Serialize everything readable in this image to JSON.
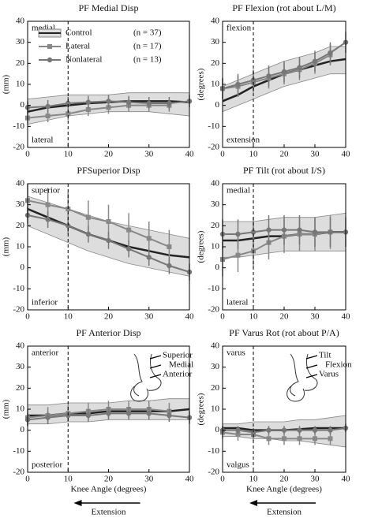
{
  "chart_data": [
    {
      "type": "line",
      "title": "PF Medial Disp",
      "ylabel": "(mm)",
      "annotations": [
        "medial",
        "lateral"
      ],
      "x": [
        0,
        5,
        10,
        15,
        20,
        25,
        30,
        35,
        40
      ],
      "xlim": [
        0,
        40
      ],
      "xticks": [
        0,
        10,
        20,
        30,
        40
      ],
      "ylim": [
        -20,
        40
      ],
      "yticks": [
        -20,
        -10,
        0,
        10,
        20,
        30,
        40
      ],
      "reference_x": 10,
      "legend": true,
      "legend_counts": [
        "(n = 37)",
        "(n = 17)",
        "(n = 13)"
      ],
      "series": [
        {
          "name": "Control",
          "color": "#222222",
          "band_color": "#dddddd",
          "values": [
            -3,
            -1,
            0,
            1,
            1.5,
            2,
            2,
            2,
            1.5
          ],
          "lower": [
            -9,
            -7,
            -5,
            -4,
            -3,
            -3,
            -3,
            -4,
            -5
          ],
          "upper": [
            3,
            4,
            5,
            5,
            5,
            6,
            6,
            6,
            6
          ]
        },
        {
          "name": "Lateral",
          "color": "#888888",
          "marker": "square",
          "values": [
            -6,
            -5,
            -4,
            -2,
            -1,
            0,
            0,
            0,
            null
          ],
          "errors": [
            3,
            3,
            3,
            3,
            3,
            3,
            3,
            3,
            null
          ]
        },
        {
          "name": "Nonlateral",
          "color": "#777777",
          "marker": "circle",
          "values": [
            -1,
            -0.5,
            1,
            1.5,
            2,
            1.5,
            1,
            1,
            2
          ],
          "errors": [
            3,
            3,
            3,
            3,
            3,
            3,
            3,
            3,
            3
          ]
        }
      ]
    },
    {
      "type": "line",
      "title": "PF Flexion (rot about L/M)",
      "ylabel": "(degrees)",
      "annotations": [
        "flexion",
        "extension"
      ],
      "x": [
        0,
        5,
        10,
        15,
        20,
        25,
        30,
        35,
        40
      ],
      "xlim": [
        0,
        40
      ],
      "xticks": [
        0,
        10,
        20,
        30,
        40
      ],
      "ylim": [
        -20,
        40
      ],
      "yticks": [
        -20,
        -10,
        0,
        10,
        20,
        30,
        40
      ],
      "reference_x": 10,
      "series": [
        {
          "color": "#222222",
          "band_color": "#dddddd",
          "values": [
            2,
            5,
            9,
            12,
            15,
            17,
            19,
            21,
            22
          ],
          "lower": [
            -3,
            0,
            3,
            6,
            9,
            11,
            13,
            15,
            15
          ],
          "upper": [
            9,
            12,
            15,
            18,
            21,
            23,
            25,
            28,
            28
          ]
        },
        {
          "color": "#888888",
          "marker": "square",
          "values": [
            8,
            9,
            11,
            13,
            15,
            17,
            20,
            24,
            null
          ],
          "errors": [
            5,
            5,
            5,
            5,
            5,
            5,
            5,
            5,
            null
          ]
        },
        {
          "color": "#777777",
          "marker": "circle",
          "values": [
            8,
            10,
            12,
            14,
            16,
            18,
            21,
            25,
            30
          ],
          "errors": [
            5,
            5,
            5,
            5,
            5,
            5,
            5,
            5,
            5
          ]
        }
      ]
    },
    {
      "type": "line",
      "title": "PFSuperior Disp",
      "ylabel": "(mm)",
      "annotations": [
        "superior",
        "inferior"
      ],
      "x": [
        0,
        5,
        10,
        15,
        20,
        25,
        30,
        35,
        40
      ],
      "xlim": [
        0,
        40
      ],
      "xticks": [
        0,
        10,
        20,
        30,
        40
      ],
      "ylim": [
        -20,
        40
      ],
      "yticks": [
        -20,
        -10,
        0,
        10,
        20,
        30,
        40
      ],
      "reference_x": 10,
      "series": [
        {
          "color": "#222222",
          "band_color": "#dddddd",
          "values": [
            28,
            24,
            20,
            16,
            13,
            10,
            8,
            6,
            5
          ],
          "lower": [
            20,
            16,
            12,
            8,
            5,
            2,
            0,
            -2,
            -4
          ],
          "upper": [
            34,
            31,
            28,
            25,
            22,
            20,
            18,
            16,
            14
          ]
        },
        {
          "color": "#888888",
          "marker": "square",
          "values": [
            32,
            30,
            28,
            24,
            22,
            18,
            14,
            10,
            null
          ],
          "errors": [
            8,
            8,
            8,
            8,
            8,
            8,
            8,
            8,
            null
          ]
        },
        {
          "color": "#777777",
          "marker": "circle",
          "values": [
            25,
            23,
            20,
            16,
            13,
            9,
            5,
            1,
            -2
          ],
          "errors": [
            4,
            4,
            4,
            4,
            4,
            4,
            4,
            4,
            4
          ]
        }
      ]
    },
    {
      "type": "line",
      "title": "PF Tilt (rot about I/S)",
      "ylabel": "(degrees)",
      "annotations": [
        "medial",
        "lateral"
      ],
      "x": [
        0,
        5,
        10,
        15,
        20,
        25,
        30,
        35,
        40
      ],
      "xlim": [
        0,
        40
      ],
      "xticks": [
        0,
        10,
        20,
        30,
        40
      ],
      "ylim": [
        -20,
        40
      ],
      "yticks": [
        -20,
        -10,
        0,
        10,
        20,
        30,
        40
      ],
      "reference_x": 10,
      "series": [
        {
          "color": "#222222",
          "band_color": "#dddddd",
          "values": [
            13,
            13,
            14,
            15,
            15,
            16,
            16,
            17,
            17
          ],
          "lower": [
            5,
            5,
            6,
            7,
            8,
            8,
            8,
            8,
            8
          ],
          "upper": [
            22,
            22,
            22,
            23,
            24,
            24,
            24,
            25,
            26
          ]
        },
        {
          "color": "#888888",
          "marker": "square",
          "values": [
            4,
            6,
            8,
            12,
            15,
            16,
            16,
            17,
            null
          ],
          "errors": [
            8,
            8,
            8,
            8,
            8,
            8,
            8,
            8,
            null
          ]
        },
        {
          "color": "#777777",
          "marker": "circle",
          "values": [
            16,
            16,
            17,
            18,
            18,
            18,
            17,
            17,
            17
          ],
          "errors": [
            7,
            7,
            7,
            7,
            7,
            7,
            7,
            7,
            7
          ]
        }
      ]
    },
    {
      "type": "line",
      "title": "PF Anterior Disp",
      "ylabel": "(mm)",
      "xlabel": "Knee Angle (degrees)",
      "footer": "Extension",
      "annotations": [
        "anterior",
        "posterior"
      ],
      "diagram_labels": [
        "Superior",
        "Medial",
        "Anterior"
      ],
      "x": [
        0,
        5,
        10,
        15,
        20,
        25,
        30,
        35,
        40
      ],
      "xlim": [
        0,
        40
      ],
      "xticks": [
        0,
        10,
        20,
        30,
        40
      ],
      "ylim": [
        -20,
        40
      ],
      "yticks": [
        -20,
        -10,
        0,
        10,
        20,
        30,
        40
      ],
      "reference_x": 10,
      "series": [
        {
          "color": "#222222",
          "band_color": "#dddddd",
          "values": [
            7,
            7,
            8,
            8,
            9,
            9,
            9,
            9,
            10
          ],
          "lower": [
            3,
            3,
            4,
            4,
            5,
            5,
            5,
            5,
            5
          ],
          "upper": [
            12,
            12,
            13,
            13,
            13,
            14,
            14,
            15,
            15
          ]
        },
        {
          "color": "#888888",
          "marker": "square",
          "values": [
            6,
            7,
            8,
            9,
            10,
            10,
            10,
            9,
            null
          ],
          "errors": [
            4,
            4,
            4,
            4,
            4,
            4,
            4,
            4,
            null
          ]
        },
        {
          "color": "#777777",
          "marker": "circle",
          "values": [
            5,
            6,
            7,
            7,
            8,
            8,
            8,
            7,
            6
          ],
          "errors": [
            3,
            3,
            3,
            3,
            3,
            3,
            3,
            3,
            3
          ]
        }
      ]
    },
    {
      "type": "line",
      "title": "PF Varus Rot (rot about P/A)",
      "ylabel": "(degrees)",
      "xlabel": "Knee Angle (degrees)",
      "footer": "Extension",
      "annotations": [
        "varus",
        "valgus"
      ],
      "diagram_labels": [
        "Tilt",
        "Flexion",
        "Varus"
      ],
      "x": [
        0,
        5,
        10,
        15,
        20,
        25,
        30,
        35,
        40
      ],
      "xlim": [
        0,
        40
      ],
      "xticks": [
        0,
        10,
        20,
        30,
        40
      ],
      "ylim": [
        -20,
        40
      ],
      "yticks": [
        -20,
        -10,
        0,
        10,
        20,
        30,
        40
      ],
      "reference_x": 10,
      "series": [
        {
          "color": "#222222",
          "band_color": "#dddddd",
          "values": [
            1,
            1,
            0,
            0,
            0,
            0.5,
            1,
            1,
            1
          ],
          "lower": [
            -3,
            -3,
            -4,
            -4,
            -5,
            -5,
            -6,
            -7,
            -8
          ],
          "upper": [
            3,
            3,
            4,
            4,
            4,
            5,
            5,
            6,
            7
          ]
        },
        {
          "color": "#888888",
          "marker": "square",
          "values": [
            -1,
            -2,
            -2,
            -4,
            -4,
            -4,
            -4,
            -4,
            null
          ],
          "errors": [
            3,
            3,
            3,
            3,
            3,
            3,
            3,
            3,
            null
          ]
        },
        {
          "color": "#777777",
          "marker": "circle",
          "values": [
            0,
            0,
            -1,
            0,
            0,
            0,
            0,
            0,
            1
          ],
          "errors": [
            2,
            2,
            2,
            2,
            2,
            2,
            2,
            2,
            2
          ]
        }
      ]
    }
  ]
}
